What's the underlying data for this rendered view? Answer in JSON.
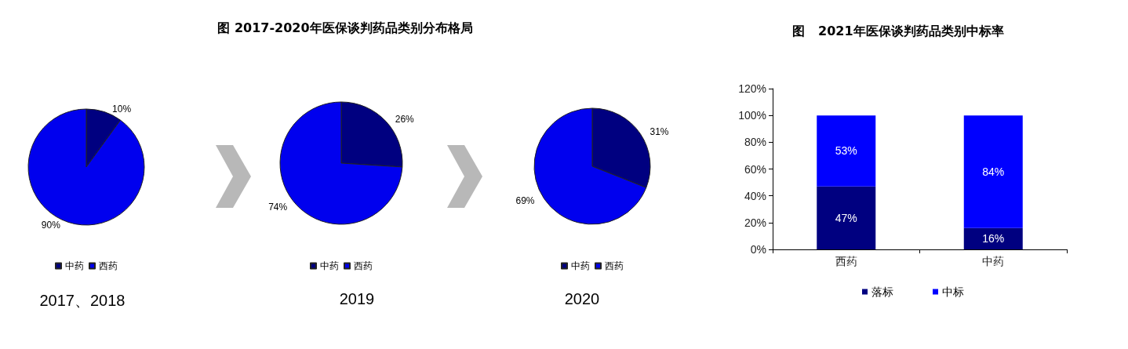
{
  "chart_data": [
    {
      "type": "other",
      "title": "图  2017-2020年医保谈判药品类别分布格局"
    },
    {
      "type": "pie",
      "categories": [
        "中药",
        "西药"
      ],
      "values": [
        10,
        90
      ],
      "value_labels": [
        "10%",
        "90%"
      ],
      "colors": [
        "#000080",
        "#0000ee"
      ],
      "legend": "bottom",
      "annotations": [
        "2017、2018"
      ]
    },
    {
      "type": "pie",
      "categories": [
        "中药",
        "西药"
      ],
      "values": [
        26,
        74
      ],
      "value_labels": [
        "26%",
        "74%"
      ],
      "colors": [
        "#000080",
        "#0000ee"
      ],
      "legend": "bottom",
      "annotations": [
        "2019"
      ]
    },
    {
      "type": "pie",
      "categories": [
        "中药",
        "西药"
      ],
      "values": [
        31,
        69
      ],
      "value_labels": [
        "31%",
        "69%"
      ],
      "colors": [
        "#000080",
        "#0000ee"
      ],
      "legend": "bottom",
      "annotations": [
        "2020"
      ]
    },
    {
      "type": "bar",
      "title": "图   2021年医保谈判药品类别中标率",
      "categories": [
        "西药",
        "中药"
      ],
      "stacked": true,
      "legend": "bottom",
      "series": [
        {
          "name": "落标",
          "color": "#000080",
          "values": [
            47,
            16
          ],
          "value_labels": [
            "47%",
            "16%"
          ]
        },
        {
          "name": "中标",
          "color": "#0000ff",
          "values": [
            53,
            84
          ],
          "value_labels": [
            "53%",
            "84%"
          ]
        }
      ],
      "ylim": [
        0,
        120
      ],
      "yticks": [
        {
          "value": 0,
          "label": "0%"
        },
        {
          "value": 20,
          "label": "20%"
        },
        {
          "value": 40,
          "label": "40%"
        },
        {
          "value": 60,
          "label": "60%"
        },
        {
          "value": 80,
          "label": "80%"
        },
        {
          "value": 100,
          "label": "100%"
        },
        {
          "value": 120,
          "label": "120%"
        }
      ]
    }
  ]
}
